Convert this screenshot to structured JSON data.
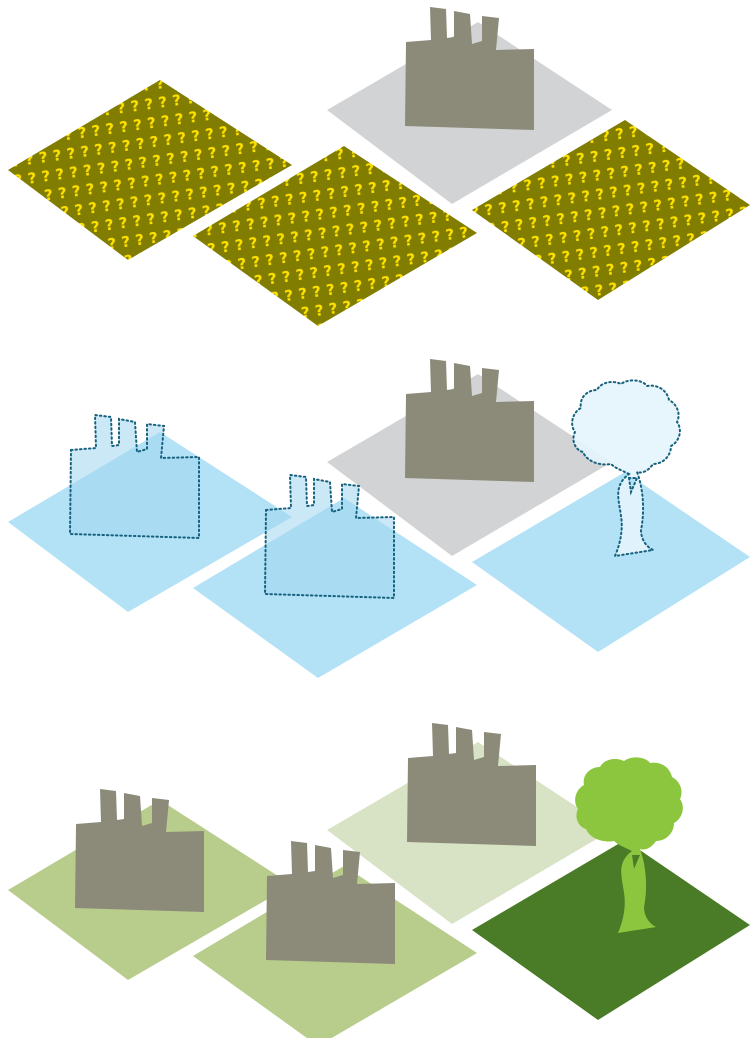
{
  "colors": {
    "background": "#ffffff",
    "factory": "#8c8b7a",
    "unknown_tile": "#807d00",
    "unknown_glyph": "#ffe100",
    "selected_tile": "#d2d3d5",
    "blue_tile": "#b3e2f7",
    "blue_outline": "#16617e",
    "pale_blue_fill": "#e4f5fc",
    "pale_green_tile": "#d7e3c4",
    "green_tile": "#b8cc8c",
    "dark_green_tile": "#4a7b27",
    "tree_green": "#8cc63f"
  },
  "panels": [
    {
      "name": "unknown-state",
      "tiles": [
        {
          "name": "tile-unknown-left",
          "style": "unknown"
        },
        {
          "name": "tile-selected-back",
          "style": "selected"
        },
        {
          "name": "tile-unknown-middle",
          "style": "unknown"
        },
        {
          "name": "tile-unknown-right",
          "style": "unknown"
        }
      ],
      "objects": [
        {
          "name": "factory-icon",
          "kind": "factory",
          "style": "solid"
        }
      ]
    },
    {
      "name": "planning-state",
      "tiles": [
        {
          "name": "tile-blue-left",
          "style": "blue"
        },
        {
          "name": "tile-selected-back",
          "style": "selected"
        },
        {
          "name": "tile-blue-middle",
          "style": "blue"
        },
        {
          "name": "tile-blue-right",
          "style": "blue"
        }
      ],
      "objects": [
        {
          "name": "factory-icon",
          "kind": "factory",
          "style": "dotted"
        },
        {
          "name": "factory-icon",
          "kind": "factory",
          "style": "dotted"
        },
        {
          "name": "factory-icon",
          "kind": "factory",
          "style": "solid"
        },
        {
          "name": "tree-icon",
          "kind": "tree",
          "style": "dotted"
        }
      ]
    },
    {
      "name": "realized-state",
      "tiles": [
        {
          "name": "tile-green-left",
          "style": "green"
        },
        {
          "name": "tile-pale-green-back",
          "style": "pale-green"
        },
        {
          "name": "tile-green-middle",
          "style": "green"
        },
        {
          "name": "tile-dark-green-right",
          "style": "dark-green"
        }
      ],
      "objects": [
        {
          "name": "factory-icon",
          "kind": "factory",
          "style": "solid"
        },
        {
          "name": "factory-icon",
          "kind": "factory",
          "style": "solid"
        },
        {
          "name": "factory-icon",
          "kind": "factory",
          "style": "solid"
        },
        {
          "name": "tree-icon",
          "kind": "tree",
          "style": "solid"
        }
      ]
    }
  ]
}
